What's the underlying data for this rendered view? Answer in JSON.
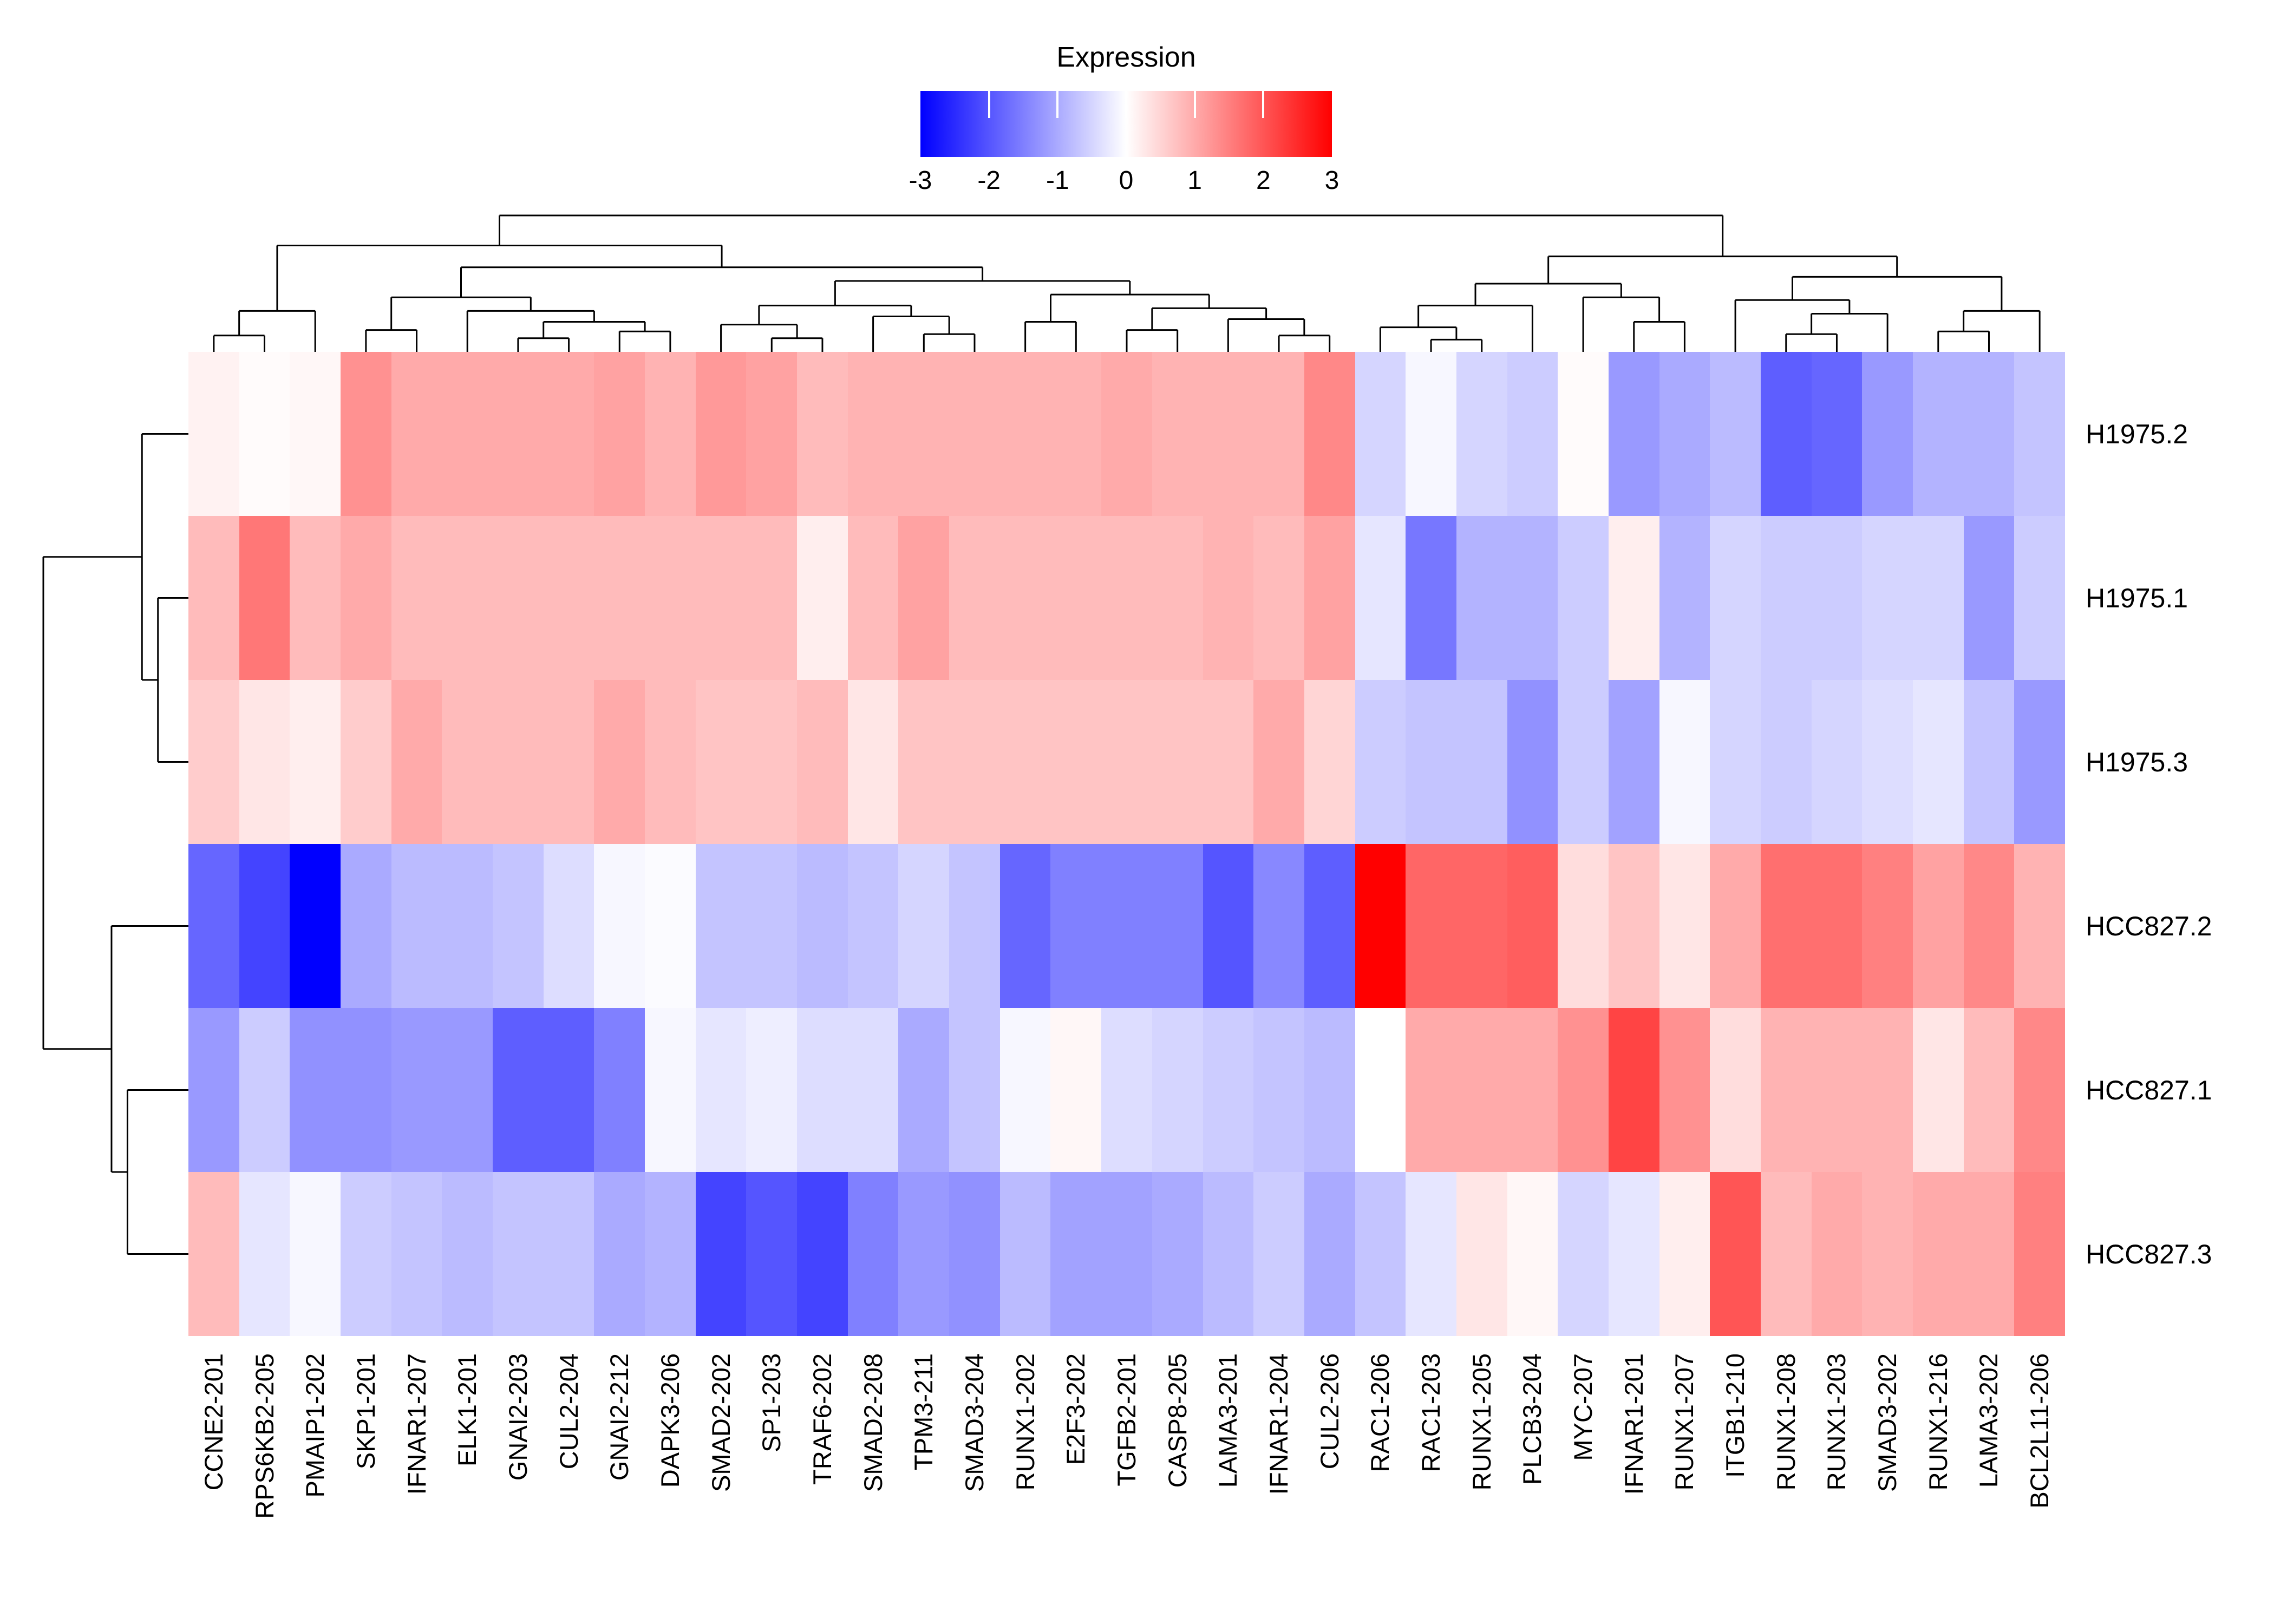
{
  "legend": {
    "title": "Expression",
    "ticks": [
      {
        "label": "-3",
        "value": -3
      },
      {
        "label": "-2",
        "value": -2
      },
      {
        "label": "-1",
        "value": -1
      },
      {
        "label": "0",
        "value": 0
      },
      {
        "label": "1",
        "value": 1
      },
      {
        "label": "2",
        "value": 2
      },
      {
        "label": "3",
        "value": 3
      }
    ]
  },
  "chart_data": {
    "type": "heatmap",
    "title": "Expression",
    "legend_position": "top",
    "grid": false,
    "rows": [
      "H1975.2",
      "H1975.1",
      "H1975.3",
      "HCC827.2",
      "HCC827.1",
      "HCC827.3"
    ],
    "columns": [
      "CCNE2-201",
      "RPS6KB2-205",
      "PMAIP1-202",
      "SKP1-201",
      "IFNAR1-207",
      "ELK1-201",
      "GNAI2-203",
      "CUL2-204",
      "GNAI2-212",
      "DAPK3-206",
      "SMAD2-202",
      "SP1-203",
      "TRAF6-202",
      "SMAD2-208",
      "TPM3-211",
      "SMAD3-204",
      "RUNX1-202",
      "E2F3-202",
      "TGFB2-201",
      "CASP8-205",
      "LAMA3-201",
      "IFNAR1-204",
      "CUL2-206",
      "RAC1-206",
      "RAC1-203",
      "RUNX1-205",
      "PLCB3-204",
      "MYC-207",
      "IFNAR1-201",
      "RUNX1-207",
      "ITGB1-210",
      "RUNX1-208",
      "RUNX1-203",
      "SMAD3-202",
      "RUNX1-216",
      "LAMA3-202",
      "BCL2L11-206"
    ],
    "values": [
      [
        0.15,
        0.05,
        0.1,
        1.3,
        1.0,
        1.0,
        1.0,
        1.0,
        1.1,
        0.9,
        1.2,
        1.1,
        0.8,
        0.9,
        0.9,
        0.9,
        0.9,
        0.9,
        1.0,
        0.9,
        0.9,
        0.9,
        1.4,
        -0.5,
        -0.1,
        -0.5,
        -0.6,
        0.05,
        -1.2,
        -1.0,
        -0.8,
        -1.9,
        -1.8,
        -1.2,
        -0.9,
        -0.9,
        -0.7
      ],
      [
        0.8,
        1.6,
        0.8,
        1.0,
        0.8,
        0.8,
        0.8,
        0.8,
        0.8,
        0.8,
        0.8,
        0.8,
        0.2,
        0.8,
        1.1,
        0.8,
        0.8,
        0.8,
        0.8,
        0.8,
        0.9,
        0.8,
        1.1,
        -0.3,
        -1.6,
        -0.9,
        -0.9,
        -0.6,
        0.2,
        -0.9,
        -0.5,
        -0.6,
        -0.6,
        -0.5,
        -0.5,
        -1.2,
        -0.6
      ],
      [
        0.6,
        0.3,
        0.2,
        0.6,
        1.0,
        0.8,
        0.8,
        0.8,
        1.0,
        0.8,
        0.7,
        0.7,
        0.8,
        0.3,
        0.7,
        0.7,
        0.7,
        0.7,
        0.7,
        0.7,
        0.7,
        1.0,
        0.5,
        -0.6,
        -0.7,
        -0.7,
        -1.3,
        -0.6,
        -1.1,
        -0.1,
        -0.5,
        -0.6,
        -0.5,
        -0.4,
        -0.3,
        -0.7,
        -1.2
      ],
      [
        -1.8,
        -2.2,
        -3.0,
        -1.0,
        -0.8,
        -0.8,
        -0.7,
        -0.4,
        -0.1,
        -0.05,
        -0.7,
        -0.7,
        -0.8,
        -0.7,
        -0.5,
        -0.7,
        -1.8,
        -1.5,
        -1.5,
        -1.5,
        -2.0,
        -1.4,
        -1.9,
        3.0,
        1.8,
        1.8,
        1.9,
        0.4,
        0.7,
        0.3,
        1.0,
        1.7,
        1.7,
        1.5,
        1.1,
        1.4,
        0.9
      ],
      [
        -1.2,
        -0.6,
        -1.3,
        -1.3,
        -1.2,
        -1.2,
        -1.9,
        -1.9,
        -1.5,
        -0.1,
        -0.3,
        -0.2,
        -0.4,
        -0.4,
        -1.0,
        -0.7,
        -0.1,
        0.1,
        -0.4,
        -0.5,
        -0.6,
        -0.7,
        -0.8,
        0.0,
        1.0,
        1.0,
        1.0,
        1.3,
        2.2,
        1.3,
        0.4,
        0.9,
        0.9,
        0.9,
        0.3,
        0.8,
        1.4
      ],
      [
        0.8,
        -0.3,
        -0.1,
        -0.6,
        -0.7,
        -0.8,
        -0.7,
        -0.7,
        -1.0,
        -0.9,
        -2.2,
        -2.0,
        -2.2,
        -1.5,
        -1.2,
        -1.3,
        -0.8,
        -1.1,
        -1.1,
        -1.0,
        -0.8,
        -0.6,
        -1.0,
        -0.7,
        -0.3,
        0.3,
        0.1,
        -0.5,
        -0.3,
        0.2,
        2.0,
        0.8,
        1.0,
        0.9,
        1.0,
        1.0,
        1.5
      ]
    ],
    "colorscale": {
      "min": -3,
      "mid": 0,
      "max": 3,
      "min_color": "#0000FF",
      "mid_color": "#FFFFFF",
      "max_color": "#FF0000"
    },
    "row_dendrogram": {
      "h": 1.0,
      "c": [
        {
          "h": 0.32,
          "c": [
            0,
            {
              "h": 0.21,
              "c": [
                1,
                2
              ]
            }
          ]
        },
        {
          "h": 0.53,
          "c": [
            3,
            {
              "h": 0.42,
              "c": [
                4,
                5
              ]
            }
          ]
        }
      ]
    },
    "col_dendrogram": {
      "h": 1.0,
      "c": [
        {
          "h": 0.78,
          "c": [
            {
              "h": 0.3,
              "c": [
                {
                  "h": 0.12,
                  "c": [
                    0,
                    1
                  ]
                },
                2
              ]
            },
            {
              "h": 0.62,
              "c": [
                {
                  "h": 0.4,
                  "c": [
                    {
                      "h": 0.16,
                      "c": [
                        3,
                        4
                      ]
                    },
                    {
                      "h": 0.3,
                      "c": [
                        5,
                        {
                          "h": 0.22,
                          "c": [
                            {
                              "h": 0.1,
                              "c": [
                                6,
                                7
                              ]
                            },
                            {
                              "h": 0.15,
                              "c": [
                                8,
                                9
                              ]
                            }
                          ]
                        }
                      ]
                    }
                  ]
                },
                {
                  "h": 0.52,
                  "c": [
                    {
                      "h": 0.34,
                      "c": [
                        {
                          "h": 0.2,
                          "c": [
                            10,
                            {
                              "h": 0.1,
                              "c": [
                                11,
                                12
                              ]
                            }
                          ]
                        },
                        {
                          "h": 0.26,
                          "c": [
                            13,
                            {
                              "h": 0.13,
                              "c": [
                                14,
                                15
                              ]
                            }
                          ]
                        }
                      ]
                    },
                    {
                      "h": 0.42,
                      "c": [
                        {
                          "h": 0.22,
                          "c": [
                            16,
                            17
                          ]
                        },
                        {
                          "h": 0.32,
                          "c": [
                            {
                              "h": 0.16,
                              "c": [
                                18,
                                19
                              ]
                            },
                            {
                              "h": 0.24,
                              "c": [
                                20,
                                {
                                  "h": 0.12,
                                  "c": [
                                    21,
                                    22
                                  ]
                                }
                              ]
                            }
                          ]
                        }
                      ]
                    }
                  ]
                }
              ]
            }
          ]
        },
        {
          "h": 0.7,
          "c": [
            {
              "h": 0.5,
              "c": [
                {
                  "h": 0.34,
                  "c": [
                    {
                      "h": 0.18,
                      "c": [
                        23,
                        {
                          "h": 0.09,
                          "c": [
                            24,
                            25
                          ]
                        }
                      ]
                    },
                    26
                  ]
                },
                {
                  "h": 0.4,
                  "c": [
                    27,
                    {
                      "h": 0.22,
                      "c": [
                        28,
                        29
                      ]
                    }
                  ]
                }
              ]
            },
            {
              "h": 0.55,
              "c": [
                {
                  "h": 0.38,
                  "c": [
                    30,
                    {
                      "h": 0.28,
                      "c": [
                        {
                          "h": 0.13,
                          "c": [
                            31,
                            32
                          ]
                        },
                        33
                      ]
                    }
                  ]
                },
                {
                  "h": 0.3,
                  "c": [
                    {
                      "h": 0.15,
                      "c": [
                        34,
                        35
                      ]
                    },
                    36
                  ]
                }
              ]
            }
          ]
        }
      ]
    }
  }
}
